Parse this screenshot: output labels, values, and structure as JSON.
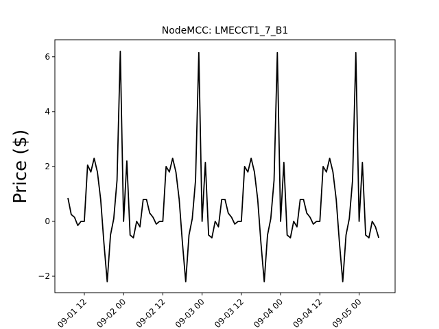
{
  "chart_data": {
    "type": "line",
    "title": "NodeMCC: LMECCT1_7_B1",
    "y_label": "Price ($)",
    "x": [
      "09-01 07",
      "09-01 08",
      "09-01 09",
      "09-01 10",
      "09-01 11",
      "09-01 12",
      "09-01 13",
      "09-01 14",
      "09-01 15",
      "09-01 16",
      "09-01 17",
      "09-01 18",
      "09-01 19",
      "09-01 20",
      "09-01 21",
      "09-01 22",
      "09-01 23",
      "09-02 00",
      "09-02 01",
      "09-02 02",
      "09-02 03",
      "09-02 04",
      "09-02 05",
      "09-02 06",
      "09-02 07",
      "09-02 08",
      "09-02 09",
      "09-02 10",
      "09-02 11",
      "09-02 12",
      "09-02 13",
      "09-02 14",
      "09-02 15",
      "09-02 16",
      "09-02 17",
      "09-02 18",
      "09-02 19",
      "09-02 20",
      "09-02 21",
      "09-02 22",
      "09-02 23",
      "09-03 00",
      "09-03 01",
      "09-03 02",
      "09-03 03",
      "09-03 04",
      "09-03 05",
      "09-03 06",
      "09-03 07",
      "09-03 08",
      "09-03 09",
      "09-03 10",
      "09-03 11",
      "09-03 12",
      "09-03 13",
      "09-03 14",
      "09-03 15",
      "09-03 16",
      "09-03 17",
      "09-03 18",
      "09-03 19",
      "09-03 20",
      "09-03 21",
      "09-03 22",
      "09-03 23",
      "09-04 00",
      "09-04 01",
      "09-04 02",
      "09-04 03",
      "09-04 04",
      "09-04 05",
      "09-04 06",
      "09-04 07",
      "09-04 08",
      "09-04 09",
      "09-04 10",
      "09-04 11",
      "09-04 12",
      "09-04 13",
      "09-04 14",
      "09-04 15",
      "09-04 16",
      "09-04 17",
      "09-04 18",
      "09-04 19",
      "09-04 20",
      "09-04 21",
      "09-04 22",
      "09-04 23",
      "09-05 00",
      "09-05 01",
      "09-05 02",
      "09-05 03",
      "09-05 04",
      "09-05 05",
      "09-05 06"
    ],
    "series": [
      {
        "color": "#000000",
        "values": [
          0.85,
          0.25,
          0.15,
          -0.15,
          0.0,
          0.0,
          2.05,
          1.8,
          2.3,
          1.8,
          0.8,
          -0.8,
          -2.2,
          -0.5,
          0.1,
          1.5,
          6.2,
          0.0,
          2.2,
          -0.5,
          -0.6,
          0.0,
          -0.2,
          0.8,
          0.8,
          0.3,
          0.15,
          -0.1,
          0.0,
          0.0,
          2.0,
          1.8,
          2.3,
          1.8,
          0.8,
          -0.8,
          -2.2,
          -0.5,
          0.1,
          1.5,
          6.15,
          0.0,
          2.15,
          -0.5,
          -0.6,
          0.0,
          -0.2,
          0.8,
          0.8,
          0.3,
          0.15,
          -0.1,
          0.0,
          0.0,
          2.0,
          1.8,
          2.3,
          1.8,
          0.8,
          -0.8,
          -2.2,
          -0.5,
          0.1,
          1.5,
          6.15,
          0.0,
          2.15,
          -0.5,
          -0.6,
          0.0,
          -0.2,
          0.8,
          0.8,
          0.3,
          0.15,
          -0.1,
          0.0,
          0.0,
          2.0,
          1.8,
          2.3,
          1.8,
          0.8,
          -0.8,
          -2.2,
          -0.5,
          0.1,
          1.5,
          6.15,
          0.0,
          2.15,
          -0.5,
          -0.6,
          0.0,
          -0.2,
          -0.6
        ]
      }
    ],
    "xlim": [
      "09-01 03",
      "09-05 11"
    ],
    "xticks": [
      "09-01 12",
      "09-02 00",
      "09-02 12",
      "09-03 00",
      "09-03 12",
      "09-04 00",
      "09-04 12",
      "09-05 00"
    ],
    "ylim": [
      -2.6,
      6.62
    ],
    "yticks": [
      {
        "value": -2,
        "label": "−2"
      },
      0,
      2,
      4,
      6
    ]
  }
}
